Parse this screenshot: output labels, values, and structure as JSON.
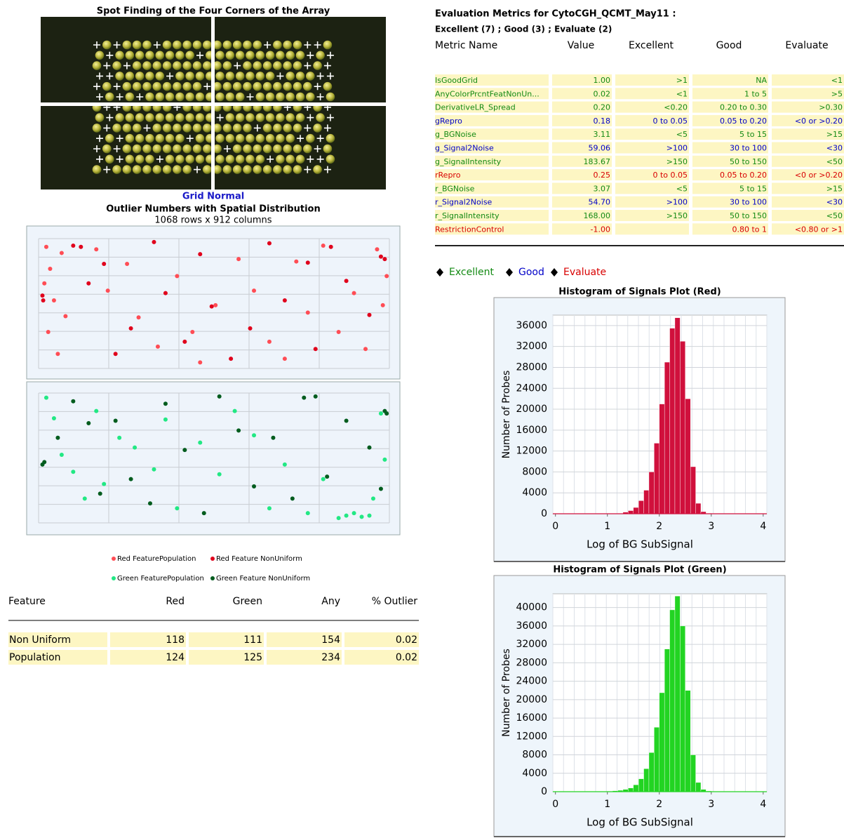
{
  "spot_finding": {
    "title": "Spot Finding of the Four Corners of the Array",
    "status": "Grid Normal"
  },
  "outliers": {
    "title": "Outlier Numbers with Spatial Distribution",
    "subtitle": "1068 rows x 912 columns",
    "plots": [
      {
        "type": "scatter",
        "xlim": [
          0,
          912
        ],
        "ylim": [
          0,
          1068
        ],
        "series": [
          {
            "name": "Red FeaturePopulation",
            "color": "#ff4d55",
            "x": [
              20,
              60,
              30,
              15,
              40,
              70,
              25,
              50,
              150,
              180,
              230,
              260,
              310,
              360,
              400,
              420,
              460,
              520,
              560,
              600,
              640,
              670,
              700,
              740,
              780,
              820,
              850,
              880,
              895,
              905
            ],
            "values": [
              1000,
              950,
              820,
              700,
              560,
              430,
              300,
              120,
              980,
              640,
              860,
              420,
              180,
              760,
              300,
              50,
              520,
              900,
              640,
              220,
              80,
              880,
              460,
              1010,
              300,
              620,
              160,
              980,
              520,
              760
            ]
          },
          {
            "name": "Red Feature NonUniform",
            "color": "#e0001c",
            "x": [
              10,
              12,
              90,
              110,
              130,
              170,
              200,
              240,
              300,
              330,
              380,
              420,
              450,
              500,
              550,
              600,
              640,
              700,
              720,
              760,
              800,
              860,
              890,
              900
            ],
            "values": [
              600,
              560,
              1010,
              1000,
              700,
              860,
              120,
              330,
              1040,
              620,
              220,
              940,
              510,
              80,
              330,
              1030,
              560,
              870,
              160,
              1000,
              720,
              440,
              920,
              900
            ]
          }
        ]
      },
      {
        "type": "scatter",
        "xlim": [
          0,
          912
        ],
        "ylim": [
          0,
          1068
        ],
        "series": [
          {
            "name": "Green FeaturePopulation",
            "color": "#22e884",
            "x": [
              20,
              40,
              60,
              90,
              120,
              150,
              170,
              210,
              250,
              300,
              330,
              360,
              420,
              470,
              510,
              560,
              600,
              640,
              700,
              740,
              780,
              800,
              820,
              840,
              860,
              870,
              890,
              900
            ],
            "values": [
              1030,
              860,
              560,
              420,
              200,
              920,
              320,
              700,
              620,
              440,
              850,
              120,
              660,
              400,
              920,
              720,
              120,
              480,
              80,
              360,
              40,
              60,
              80,
              50,
              60,
              200,
              900,
              520
            ]
          },
          {
            "name": "Green Feature NonUniform",
            "color": "#005c1e",
            "x": [
              10,
              15,
              50,
              90,
              130,
              160,
              200,
              240,
              290,
              330,
              380,
              430,
              470,
              520,
              560,
              610,
              660,
              690,
              720,
              750,
              800,
              860,
              890,
              900,
              905
            ],
            "values": [
              480,
              500,
              700,
              1000,
              820,
              240,
              840,
              360,
              160,
              980,
              600,
              80,
              1040,
              760,
              300,
              700,
              200,
              1030,
              1040,
              380,
              840,
              620,
              280,
              920,
              900
            ]
          }
        ]
      }
    ],
    "table": {
      "header": [
        "Feature",
        "Red",
        "Green",
        "Any",
        "% Outlier"
      ],
      "rows": [
        [
          "Non Uniform",
          118,
          111,
          154,
          0.02
        ],
        [
          "Population",
          124,
          125,
          234,
          0.02
        ]
      ]
    }
  },
  "metrics": {
    "title": "Evaluation Metrics for CytoCGH_QCMT_May11 :",
    "summary": "Excellent (7) ; Good (3) ; Evaluate (2)",
    "header": [
      "Metric Name",
      "Value",
      "Excellent",
      "Good",
      "Evaluate"
    ],
    "rows": [
      {
        "name": "IsGoodGrid",
        "value": "1.00",
        "excellent": ">1",
        "good": "NA",
        "evaluate": "<1",
        "color": "#138a13"
      },
      {
        "name": "AnyColorPrcntFeatNonUn...",
        "value": "0.02",
        "excellent": "<1",
        "good": "1 to 5",
        "evaluate": ">5",
        "color": "#138a13"
      },
      {
        "name": "DerivativeLR_Spread",
        "value": "0.20",
        "excellent": "<0.20",
        "good": "0.20 to 0.30",
        "evaluate": ">0.30",
        "color": "#138a13"
      },
      {
        "name": "gRepro",
        "value": "0.18",
        "excellent": "0 to 0.05",
        "good": "0.05 to 0.20",
        "evaluate": "<0 or >0.20",
        "color": "#0000c8"
      },
      {
        "name": "g_BGNoise",
        "value": "3.11",
        "excellent": "<5",
        "good": "5 to 15",
        "evaluate": ">15",
        "color": "#138a13"
      },
      {
        "name": "g_Signal2Noise",
        "value": "59.06",
        "excellent": ">100",
        "good": "30 to 100",
        "evaluate": "<30",
        "color": "#0000c8"
      },
      {
        "name": "g_SignalIntensity",
        "value": "183.67",
        "excellent": ">150",
        "good": "50 to 150",
        "evaluate": "<50",
        "color": "#138a13"
      },
      {
        "name": "rRepro",
        "value": "0.25",
        "excellent": "0 to 0.05",
        "good": "0.05 to 0.20",
        "evaluate": "<0 or >0.20",
        "color": "#d80000"
      },
      {
        "name": "r_BGNoise",
        "value": "3.07",
        "excellent": "<5",
        "good": "5 to 15",
        "evaluate": ">15",
        "color": "#138a13"
      },
      {
        "name": "r_Signal2Noise",
        "value": "54.70",
        "excellent": ">100",
        "good": "30 to 100",
        "evaluate": "<30",
        "color": "#0000c8"
      },
      {
        "name": "r_SignalIntensity",
        "value": "168.00",
        "excellent": ">150",
        "good": "50 to 150",
        "evaluate": "<50",
        "color": "#138a13"
      },
      {
        "name": "RestrictionControl",
        "value": "-1.00",
        "excellent": null,
        "good": "0.80 to 1",
        "evaluate": "<0.80 or >1",
        "color": "#d80000"
      }
    ],
    "legend": [
      {
        "label": "Excellent",
        "color": "#138a13"
      },
      {
        "label": "Good",
        "color": "#0000c8"
      },
      {
        "label": "Evaluate",
        "color": "#d80000"
      }
    ]
  },
  "histograms": [
    {
      "type": "histogram",
      "title": "Histogram of Signals Plot (Red)",
      "xlabel": "Log of BG SubSignal",
      "ylabel": "Number of Probes",
      "color": "#d0103c",
      "bins": [
        0,
        0.1,
        0.2,
        0.3,
        0.4,
        0.5,
        0.6,
        0.7,
        0.8,
        0.9,
        1,
        1.1,
        1.2,
        1.3,
        1.4,
        1.5,
        1.6,
        1.7,
        1.8,
        1.9,
        2,
        2.1,
        2.2,
        2.3,
        2.4,
        2.5,
        2.6,
        2.7,
        2.8,
        2.9,
        3,
        3.1,
        3.2,
        3.3,
        3.4,
        3.5,
        3.6,
        3.7,
        3.8,
        3.9,
        4
      ],
      "values": [
        0,
        0,
        0,
        0,
        0,
        0,
        0,
        0,
        0,
        0,
        0,
        0,
        0,
        300,
        600,
        1200,
        2500,
        4500,
        8000,
        13500,
        21000,
        29000,
        35500,
        37500,
        33000,
        22000,
        9000,
        2000,
        400,
        100,
        0,
        0,
        0,
        0,
        0,
        0,
        0,
        0,
        0,
        0
      ],
      "xlim": [
        -0.05,
        4.07
      ],
      "ylim": [
        0,
        38000
      ],
      "xticks": [
        0,
        1,
        2,
        3,
        4
      ],
      "yticks": [
        0,
        4000,
        8000,
        12000,
        16000,
        20000,
        24000,
        28000,
        32000,
        36000
      ],
      "grid": true
    },
    {
      "type": "histogram",
      "title": "Histogram of Signals Plot (Green)",
      "xlabel": "Log of BG SubSignal",
      "ylabel": "Number of Probes",
      "color": "#22d422",
      "bins": [
        0,
        0.1,
        0.2,
        0.3,
        0.4,
        0.5,
        0.6,
        0.7,
        0.8,
        0.9,
        1,
        1.1,
        1.2,
        1.3,
        1.4,
        1.5,
        1.6,
        1.7,
        1.8,
        1.9,
        2,
        2.1,
        2.2,
        2.3,
        2.4,
        2.5,
        2.6,
        2.7,
        2.8,
        2.9,
        3,
        3.1,
        3.2,
        3.3,
        3.4,
        3.5,
        3.6,
        3.7,
        3.8,
        3.9,
        4
      ],
      "values": [
        0,
        0,
        0,
        0,
        0,
        0,
        0,
        0,
        0,
        0,
        100,
        200,
        300,
        500,
        800,
        1500,
        2800,
        5000,
        8500,
        14000,
        21500,
        31000,
        39500,
        42500,
        36000,
        22000,
        8000,
        2000,
        500,
        150,
        0,
        0,
        0,
        0,
        0,
        0,
        0,
        0,
        0,
        0
      ],
      "xlim": [
        -0.05,
        4.07
      ],
      "ylim": [
        0,
        43000
      ],
      "xticks": [
        0,
        1,
        2,
        3,
        4
      ],
      "yticks": [
        0,
        4000,
        8000,
        12000,
        16000,
        20000,
        24000,
        28000,
        32000,
        36000,
        40000
      ],
      "grid": true
    }
  ]
}
